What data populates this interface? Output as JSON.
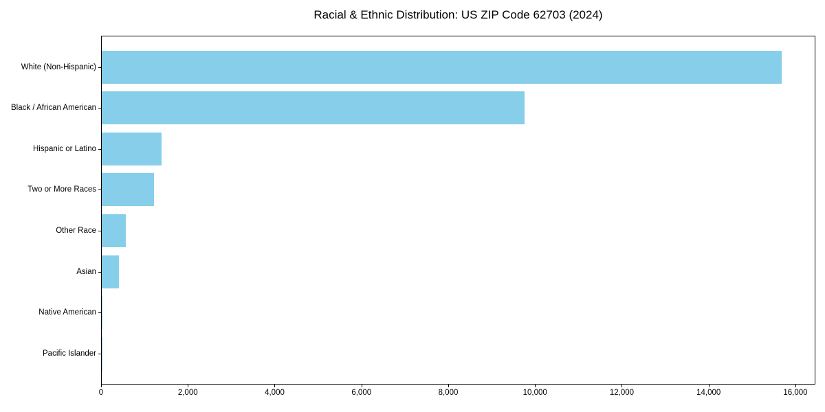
{
  "figure": {
    "background": "#ffffff"
  },
  "chart_data": {
    "type": "bar",
    "orientation": "horizontal",
    "title": "Racial & Ethnic Distribution: US ZIP Code 62703 (2024)",
    "categories": [
      "White (Non-Hispanic)",
      "Black / African American",
      "Hispanic or Latino",
      "Two or More Races",
      "Other Race",
      "Asian",
      "Native American",
      "Pacific Islander"
    ],
    "values": [
      15670,
      9750,
      1380,
      1210,
      550,
      390,
      20,
      10
    ],
    "xlabel": "",
    "ylabel": "",
    "xlim": [
      0,
      16460
    ],
    "xticks": [
      0,
      2000,
      4000,
      6000,
      8000,
      10000,
      12000,
      14000,
      16000
    ],
    "xtick_labels": [
      "0",
      "2,000",
      "4,000",
      "6,000",
      "8,000",
      "10,000",
      "12,000",
      "14,000",
      "16,000"
    ],
    "bar_color": "#87CEEB",
    "axis_color": "#000000",
    "text_color": "#000000",
    "grid": false,
    "legend": "none"
  }
}
